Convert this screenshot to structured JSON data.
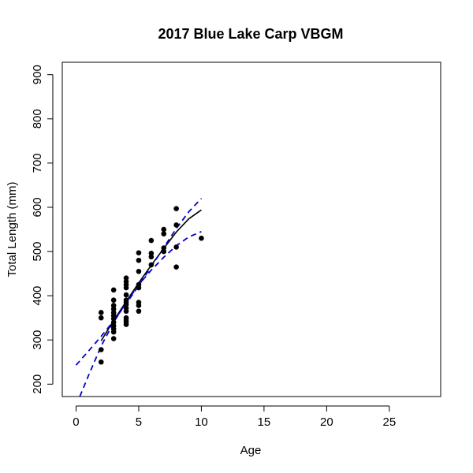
{
  "chart_data": {
    "type": "scatter",
    "title": "2017 Blue Lake Carp VBGM",
    "xlabel": "Age",
    "ylabel": "Total Length (mm)",
    "xlim": [
      -1.1,
      29.1
    ],
    "ylim": [
      172,
      928
    ],
    "x_ticks": [
      0,
      5,
      10,
      15,
      20,
      25
    ],
    "y_ticks": [
      200,
      300,
      400,
      500,
      600,
      700,
      800,
      900
    ],
    "grid": false,
    "legend": "none",
    "points_color": "#000000",
    "fit_color": "#000000",
    "ci_color": "#0000cc",
    "points": [
      [
        2,
        250
      ],
      [
        2,
        278
      ],
      [
        2,
        350
      ],
      [
        2,
        362
      ],
      [
        3,
        303
      ],
      [
        3,
        318
      ],
      [
        3,
        325
      ],
      [
        3,
        332
      ],
      [
        3,
        340
      ],
      [
        3,
        348
      ],
      [
        3,
        355
      ],
      [
        3,
        362
      ],
      [
        3,
        370
      ],
      [
        3,
        378
      ],
      [
        3,
        390
      ],
      [
        3,
        413
      ],
      [
        4,
        335
      ],
      [
        4,
        340
      ],
      [
        4,
        345
      ],
      [
        4,
        350
      ],
      [
        4,
        365
      ],
      [
        4,
        372
      ],
      [
        4,
        380
      ],
      [
        4,
        385
      ],
      [
        4,
        390
      ],
      [
        4,
        402
      ],
      [
        4,
        418
      ],
      [
        4,
        425
      ],
      [
        4,
        432
      ],
      [
        4,
        440
      ],
      [
        5,
        365
      ],
      [
        5,
        378
      ],
      [
        5,
        385
      ],
      [
        5,
        418
      ],
      [
        5,
        425
      ],
      [
        5,
        455
      ],
      [
        5,
        480
      ],
      [
        5,
        497
      ],
      [
        6,
        470
      ],
      [
        6,
        488
      ],
      [
        6,
        496
      ],
      [
        6,
        525
      ],
      [
        7,
        500
      ],
      [
        7,
        508
      ],
      [
        7,
        540
      ],
      [
        7,
        550
      ],
      [
        8,
        465
      ],
      [
        8,
        510
      ],
      [
        8,
        560
      ],
      [
        8,
        597
      ],
      [
        10,
        530
      ]
    ],
    "series": [
      {
        "style": "solid",
        "x": [
          2,
          3,
          4,
          5,
          6,
          7,
          8,
          9,
          10
        ],
        "y": [
          298,
          344,
          387,
          429,
          469,
          507,
          544,
          574,
          594
        ]
      },
      {
        "style": "dashed",
        "label_role": "upper",
        "x": [
          0,
          1,
          2,
          3,
          4,
          5,
          6,
          7,
          8,
          9,
          10
        ],
        "y": [
          243,
          275,
          308,
          343,
          382,
          423,
          466,
          509,
          552,
          590,
          620
        ]
      },
      {
        "style": "dashed",
        "label_role": "lower",
        "x": [
          0.3,
          1,
          2,
          3,
          4,
          5,
          6,
          7,
          8,
          9,
          10
        ],
        "y": [
          172,
          220,
          286,
          340,
          385,
          425,
          458,
          487,
          513,
          533,
          545
        ]
      }
    ]
  }
}
